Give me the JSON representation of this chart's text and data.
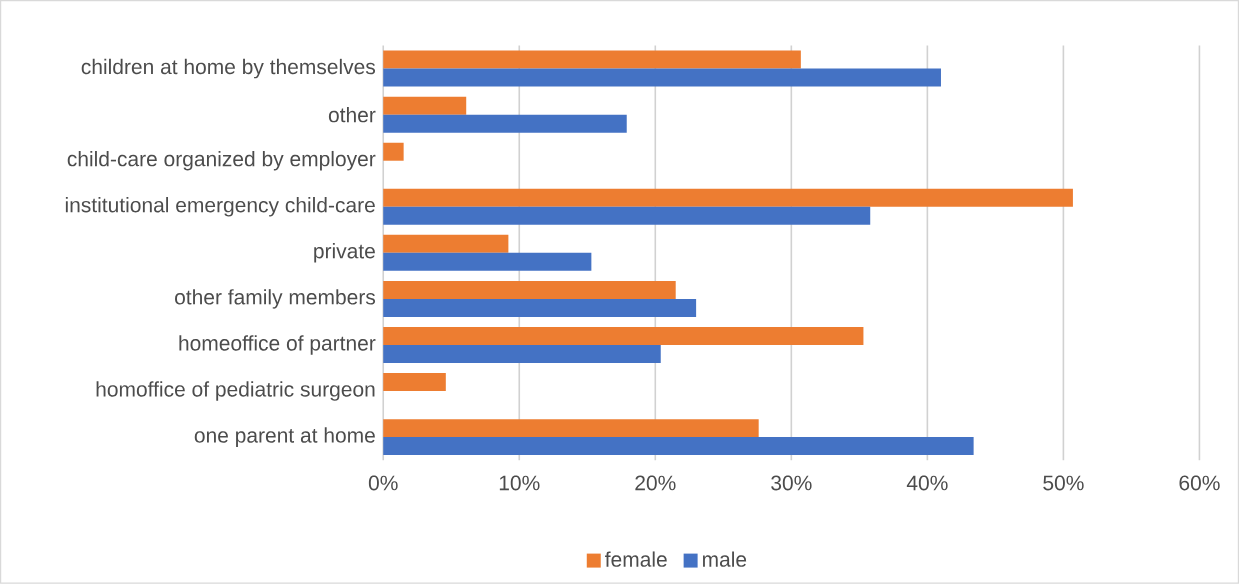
{
  "chart_data": {
    "type": "bar",
    "orientation": "horizontal",
    "categories": [
      "children at home by themselves",
      "other",
      "child-care organized by employer",
      "institutional emergency child-care",
      "private",
      "other family members",
      "homeoffice of partner",
      "homoffice of pediatric surgeon",
      "one parent at home"
    ],
    "series": [
      {
        "name": "female",
        "color": "#ed7d31",
        "values": [
          30.7,
          6.1,
          1.5,
          50.7,
          9.2,
          21.5,
          35.3,
          4.6,
          27.6
        ]
      },
      {
        "name": "male",
        "color": "#4472c4",
        "values": [
          41.0,
          17.9,
          null,
          35.8,
          15.3,
          23.0,
          20.4,
          null,
          43.4
        ]
      }
    ],
    "xlim": [
      0,
      60
    ],
    "xticks": [
      {
        "value": 0,
        "label": "0%"
      },
      {
        "value": 10,
        "label": "10%"
      },
      {
        "value": 20,
        "label": "20%"
      },
      {
        "value": 30,
        "label": "30%"
      },
      {
        "value": 40,
        "label": "40%"
      },
      {
        "value": 50,
        "label": "50%"
      },
      {
        "value": 60,
        "label": "60%"
      }
    ],
    "grid": "x",
    "legend": "bottom"
  }
}
